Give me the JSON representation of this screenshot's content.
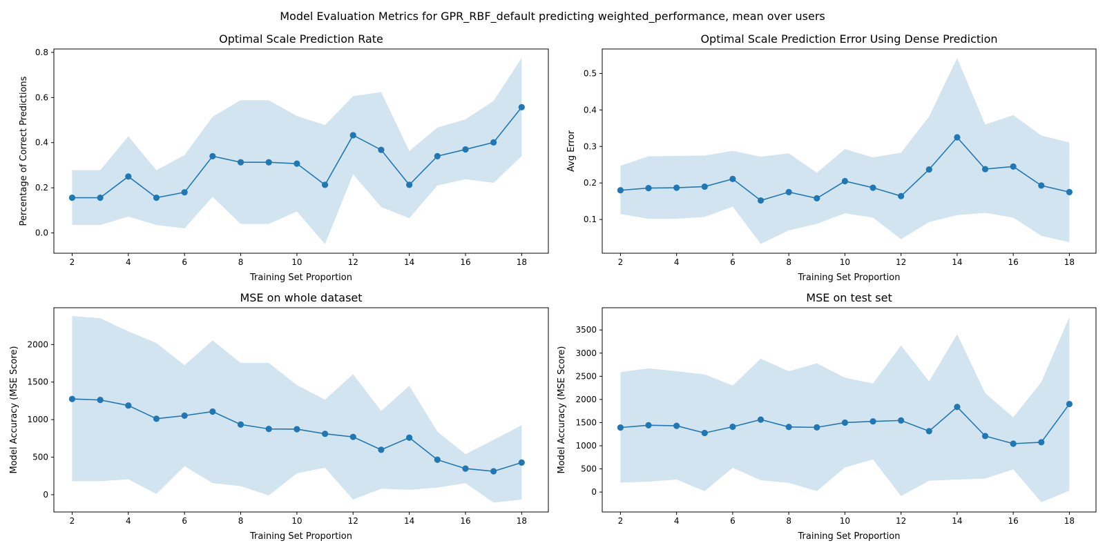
{
  "figure": {
    "suptitle": "Model Evaluation Metrics for GPR_RBF_default predicting weighted_performance, mean over users"
  },
  "colors": {
    "line": "#1f77b4",
    "band": "#1f77b4",
    "band_opacity": 0.2,
    "axes": "#000000",
    "background": "#ffffff"
  },
  "chart_data": [
    {
      "id": "rate",
      "type": "line",
      "title": "Optimal Scale Prediction Rate",
      "xlabel": "Training Set Proportion",
      "ylabel": "Percentage of Correct Predictions",
      "xlim": [
        1.35,
        18.95
      ],
      "ylim": [
        -0.09,
        0.815
      ],
      "xticks": [
        2,
        4,
        6,
        8,
        10,
        12,
        14,
        16,
        18
      ],
      "xtick_labels": [
        "2",
        "4",
        "6",
        "8",
        "10",
        "12",
        "14",
        "16",
        "18"
      ],
      "yticks": [
        0.0,
        0.2,
        0.4,
        0.6,
        0.8
      ],
      "ytick_labels": [
        "0.0",
        "0.2",
        "0.4",
        "0.6",
        "0.8"
      ],
      "grid": false,
      "series": [
        {
          "x": [
            2,
            3,
            4,
            5,
            6,
            7,
            8,
            9,
            10,
            11,
            12,
            13,
            14,
            15,
            16,
            17,
            18
          ],
          "mean": [
            0.156,
            0.156,
            0.25,
            0.156,
            0.18,
            0.34,
            0.313,
            0.313,
            0.307,
            0.213,
            0.433,
            0.368,
            0.213,
            0.34,
            0.37,
            0.401,
            0.557
          ],
          "lower": [
            0.035,
            0.035,
            0.073,
            0.035,
            0.02,
            0.16,
            0.04,
            0.04,
            0.095,
            -0.05,
            0.26,
            0.115,
            0.065,
            0.21,
            0.238,
            0.222,
            0.34
          ],
          "upper": [
            0.278,
            0.278,
            0.428,
            0.278,
            0.345,
            0.515,
            0.588,
            0.588,
            0.518,
            0.478,
            0.606,
            0.624,
            0.363,
            0.467,
            0.503,
            0.585,
            0.775
          ]
        }
      ]
    },
    {
      "id": "error",
      "type": "line",
      "title": "Optimal Scale Prediction Error Using Dense Prediction",
      "xlabel": "Training Set Proportion",
      "ylabel": "Avg Error",
      "xlim": [
        1.35,
        18.95
      ],
      "ylim": [
        0.0075,
        0.567
      ],
      "xticks": [
        2,
        4,
        6,
        8,
        10,
        12,
        14,
        16,
        18
      ],
      "xtick_labels": [
        "2",
        "4",
        "6",
        "8",
        "10",
        "12",
        "14",
        "16",
        "18"
      ],
      "yticks": [
        0.1,
        0.2,
        0.3,
        0.4,
        0.5
      ],
      "ytick_labels": [
        "0.1",
        "0.2",
        "0.3",
        "0.4",
        "0.5"
      ],
      "grid": false,
      "series": [
        {
          "x": [
            2,
            3,
            4,
            5,
            6,
            7,
            8,
            9,
            10,
            11,
            12,
            13,
            14,
            15,
            16,
            17,
            18
          ],
          "mean": [
            0.18,
            0.186,
            0.187,
            0.19,
            0.211,
            0.152,
            0.175,
            0.158,
            0.205,
            0.187,
            0.164,
            0.237,
            0.325,
            0.238,
            0.245,
            0.193,
            0.175
          ],
          "lower": [
            0.115,
            0.102,
            0.102,
            0.107,
            0.135,
            0.033,
            0.07,
            0.088,
            0.117,
            0.105,
            0.046,
            0.093,
            0.112,
            0.118,
            0.105,
            0.055,
            0.038
          ],
          "upper": [
            0.247,
            0.273,
            0.274,
            0.275,
            0.288,
            0.272,
            0.281,
            0.228,
            0.293,
            0.27,
            0.283,
            0.382,
            0.542,
            0.36,
            0.386,
            0.33,
            0.311
          ]
        }
      ]
    },
    {
      "id": "mse_whole",
      "type": "line",
      "title": "MSE on whole dataset",
      "xlabel": "Training Set Proportion",
      "ylabel": "Model Accuracy (MSE Score)",
      "xlim": [
        1.35,
        18.95
      ],
      "ylim": [
        -230,
        2490
      ],
      "xticks": [
        2,
        4,
        6,
        8,
        10,
        12,
        14,
        16,
        18
      ],
      "xtick_labels": [
        "2",
        "4",
        "6",
        "8",
        "10",
        "12",
        "14",
        "16",
        "18"
      ],
      "yticks": [
        0,
        500,
        1000,
        1500,
        2000
      ],
      "ytick_labels": [
        "0",
        "500",
        "1000",
        "1500",
        "2000"
      ],
      "grid": false,
      "series": [
        {
          "x": [
            2,
            3,
            4,
            5,
            6,
            7,
            8,
            9,
            10,
            11,
            12,
            13,
            14,
            15,
            16,
            17,
            18
          ],
          "mean": [
            1275,
            1262,
            1188,
            1012,
            1053,
            1107,
            935,
            876,
            873,
            811,
            770,
            598,
            760,
            466,
            348,
            312,
            428
          ],
          "lower": [
            180,
            180,
            205,
            10,
            380,
            155,
            115,
            -10,
            285,
            360,
            -65,
            80,
            65,
            95,
            155,
            -105,
            -65
          ],
          "upper": [
            2380,
            2350,
            2175,
            2020,
            1725,
            2055,
            1755,
            1755,
            1460,
            1265,
            1605,
            1115,
            1450,
            840,
            540,
            730,
            925
          ]
        }
      ]
    },
    {
      "id": "mse_test",
      "type": "line",
      "title": "MSE on test set",
      "xlabel": "Training Set Proportion",
      "ylabel": "Model Accuracy (MSE Score)",
      "xlim": [
        1.35,
        18.95
      ],
      "ylim": [
        -430,
        3980
      ],
      "xticks": [
        2,
        4,
        6,
        8,
        10,
        12,
        14,
        16,
        18
      ],
      "xtick_labels": [
        "2",
        "4",
        "6",
        "8",
        "10",
        "12",
        "14",
        "16",
        "18"
      ],
      "yticks": [
        0,
        500,
        1000,
        1500,
        2000,
        2500,
        3000,
        3500
      ],
      "ytick_labels": [
        "0",
        "500",
        "1000",
        "1500",
        "2000",
        "2500",
        "3000",
        "3500"
      ],
      "grid": false,
      "series": [
        {
          "x": [
            2,
            3,
            4,
            5,
            6,
            7,
            8,
            9,
            10,
            11,
            12,
            13,
            14,
            15,
            16,
            17,
            18
          ],
          "mean": [
            1393,
            1443,
            1431,
            1276,
            1410,
            1565,
            1406,
            1397,
            1500,
            1526,
            1546,
            1315,
            1838,
            1210,
            1045,
            1076,
            1901
          ],
          "lower": [
            205,
            225,
            270,
            20,
            525,
            255,
            200,
            20,
            530,
            705,
            -85,
            245,
            270,
            290,
            490,
            -220,
            30
          ],
          "upper": [
            2590,
            2670,
            2610,
            2540,
            2300,
            2880,
            2610,
            2780,
            2470,
            2345,
            3165,
            2390,
            3410,
            2135,
            1615,
            2375,
            3780
          ]
        }
      ]
    }
  ]
}
